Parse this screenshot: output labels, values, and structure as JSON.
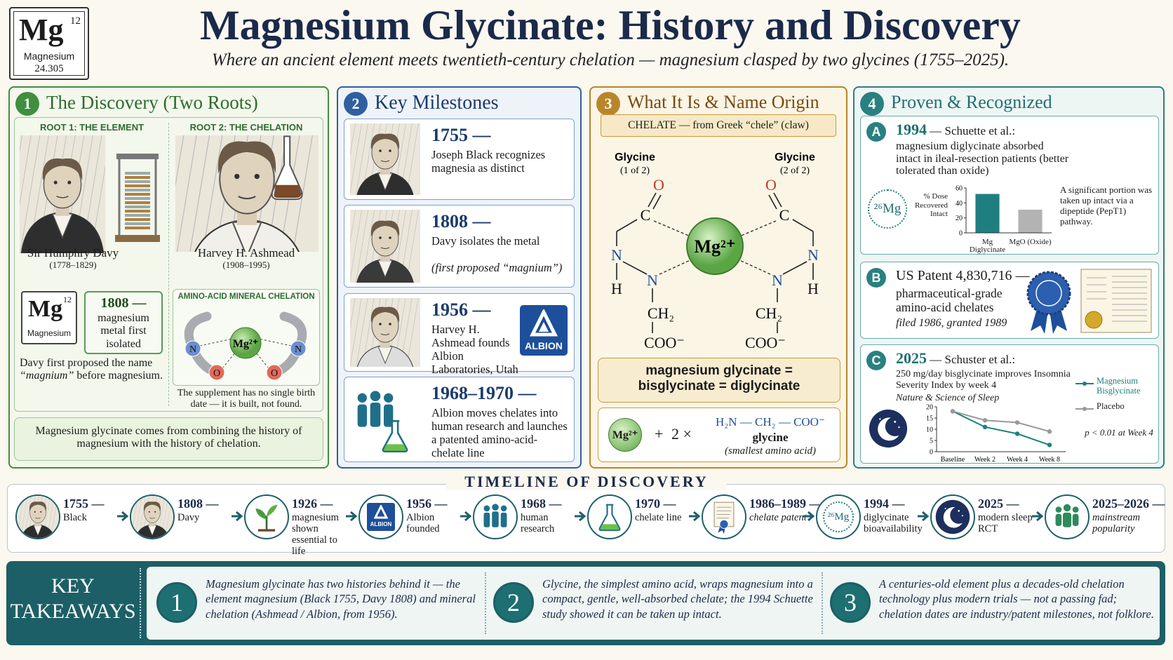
{
  "header": {
    "element": {
      "symbol": "Mg",
      "number": 12,
      "name": "Magnesium",
      "mass": 24.305
    },
    "title": "Magnesium Glycinate: History and Discovery",
    "subtitle": "Where an ancient element meets twentieth-century chelation — magnesium clasped by two glycines (1755–2025)."
  },
  "discovery": {
    "number": 1,
    "title": "The Discovery (Two Roots)",
    "root1_label": "ROOT 1: THE ELEMENT",
    "root2_label": "ROOT 2: THE CHELATION",
    "root1_name": "Sir Humphry Davy",
    "root1_dates": "(1778–1829)",
    "root2_name": "Harvey H. Ashmead",
    "root2_dates": "(1908–1995)",
    "element": {
      "symbol": "Mg",
      "number": 12,
      "name": "Magnesium"
    },
    "fact": {
      "year": "1808 —",
      "text": "magnesium metal first isolated"
    },
    "note": [
      "Davy first proposed the name ",
      "“magnium”",
      " before magnesium."
    ],
    "chelation": {
      "label": "AMINO-ACID MINERAL CHELATION",
      "metal": "Mg²⁺",
      "nitrogen": "N",
      "oxygen": "O",
      "note": "The supplement has no single birth date — it is built, not found."
    },
    "summary": "Magnesium glycinate comes from combining the history of magnesium with the history of chelation."
  },
  "milestones": {
    "number": 2,
    "title": "Key Milestones",
    "items": [
      {
        "year": "1755 —",
        "text": "Joseph Black recognizes magnesia as distinct"
      },
      {
        "year": "1808 —",
        "text": "Davy isolates the metal",
        "note": "(first proposed “magnium”)"
      },
      {
        "year": "1956 —",
        "text": "Harvey H. Ashmead founds Albion Laboratories, Utah",
        "logo": "ALBION"
      },
      {
        "year": "1968–1970 —",
        "text": "Albion moves chelates into human research and launches a patented amino-acid-chelate line"
      }
    ]
  },
  "name_origin": {
    "number": 3,
    "title": "What It Is & Name Origin",
    "etymology": "CHELATE — from Greek “chele” (claw)",
    "glycines": [
      {
        "label": "Glycine",
        "note": "(1 of 2)"
      },
      {
        "label": "Glycine",
        "note": "(2 of 2)"
      }
    ],
    "atoms": {
      "oxygen": "O",
      "carbon": "C",
      "nitrogen": "N",
      "hydrogen": "H",
      "methylene": "CH₂",
      "carboxylate": "COO⁻",
      "metal": "Mg²⁺"
    },
    "synonyms": "magnesium glycinate = bisglycinate = diglycinate",
    "reaction": {
      "metal": "Mg²⁺",
      "plus": "+",
      "times": "2 ×",
      "formula": "H₂N — CH₂ — COO⁻",
      "name": "glycine",
      "note": "(smallest amino acid)"
    }
  },
  "proven": {
    "number": 4,
    "title": "Proven & Recognized",
    "a": {
      "letter": "A",
      "year": "1994",
      "source": " — Schuette et al.:",
      "text": "magnesium diglycinate absorbed intact in ileal-resection patients (better tolerated than oxide)",
      "isotope": "²⁶Mg",
      "chart": {
        "type": "bar",
        "y_label": "% Dose Recovered Intact",
        "categories": [
          "Mg Diglycinate",
          "MgO (Oxide)"
        ],
        "values": [
          52,
          31
        ],
        "ylim": [
          0,
          60
        ],
        "yticks": [
          0,
          20,
          40,
          60
        ],
        "colors": [
          "#1f7f80",
          "#b3b3b3"
        ]
      },
      "note": "A significant portion was taken up intact via a dipeptide (PepT1) pathway."
    },
    "b": {
      "letter": "B",
      "title": "US Patent 4,830,716 —",
      "text": "pharmaceutical-grade amino-acid chelates",
      "dates": "filed 1986, granted 1989"
    },
    "c": {
      "letter": "C",
      "year": "2025",
      "source": " — Schuster et al.:",
      "text": "250 mg/day bisglycinate improves Insomnia Severity Index by week 4",
      "journal": "Nature & Science of Sleep",
      "chart": {
        "type": "line",
        "categories": [
          "Baseline",
          "Week 2",
          "Week 4",
          "Week 8"
        ],
        "series": [
          {
            "name": "Magnesium Bisglycinate",
            "color": "#1f7f80",
            "values": [
              18,
              11,
              8,
              3
            ]
          },
          {
            "name": "Placebo",
            "color": "#999999",
            "values": [
              18,
              14,
              13,
              9
            ]
          }
        ],
        "ylim": [
          0,
          20
        ],
        "yticks": [
          0,
          5,
          10,
          15,
          20
        ]
      },
      "note": "p < 0.01 at Week 4"
    }
  },
  "timeline": {
    "title": "TIMELINE OF DISCOVERY",
    "items": [
      {
        "year": "1755 —",
        "text": "Black"
      },
      {
        "year": "1808 —",
        "text": "Davy"
      },
      {
        "year": "1926 —",
        "text": "magnesium shown essential to life"
      },
      {
        "year": "1956 —",
        "text": "Albion founded"
      },
      {
        "year": "1968 —",
        "text": "human research"
      },
      {
        "year": "1970 —",
        "text": "chelate line"
      },
      {
        "year": "1986–1989 —",
        "text": "chelate patent"
      },
      {
        "year": "1994 —",
        "text": "diglycinate bioavailability"
      },
      {
        "year": "2025 —",
        "text": "modern sleep RCT"
      },
      {
        "year": "2025–2026 —",
        "text": "mainstream popularity"
      }
    ]
  },
  "takeaways": {
    "label": "KEY TAKEAWAYS",
    "items": [
      {
        "number": 1,
        "text": "Magnesium glycinate has two histories behind it — the element magnesium (Black 1755, Davy 1808) and mineral chelation (Ashmead / Albion, from 1956)."
      },
      {
        "number": 2,
        "text": "Glycine, the simplest amino acid, wraps magnesium into a compact, gentle, well-absorbed chelate; the 1994 Schuette study showed it can be taken up intact."
      },
      {
        "number": 3,
        "text": "A centuries-old element plus a decades-old chelation technology plus modern trials — not a passing fad; chelation dates are industry/patent milestones, not folklore."
      }
    ]
  }
}
